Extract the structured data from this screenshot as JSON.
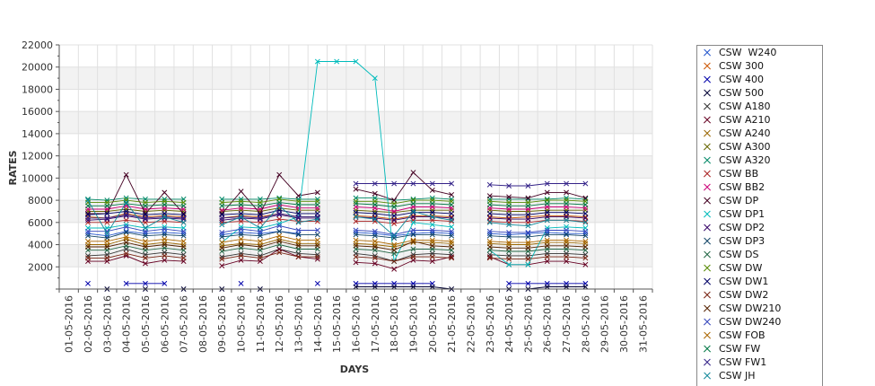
{
  "chart_data": {
    "type": "line",
    "xlabel": "DAYS",
    "ylabel": "RATES",
    "ylim": [
      0,
      22000
    ],
    "yticks": [
      "2000",
      "4000",
      "6000",
      "8000",
      "10000",
      "12000",
      "14000",
      "16000",
      "18000",
      "20000",
      "22000"
    ],
    "x": [
      "01-05-2016",
      "02-05-2016",
      "03-05-2016",
      "04-05-2016",
      "05-05-2016",
      "06-05-2016",
      "07-05-2016",
      "08-05-2016",
      "09-05-2016",
      "10-05-2016",
      "11-05-2016",
      "12-05-2016",
      "13-05-2016",
      "14-05-2016",
      "15-05-2016",
      "16-05-2016",
      "17-05-2016",
      "18-05-2016",
      "19-05-2016",
      "20-05-2016",
      "21-05-2016",
      "22-05-2016",
      "23-05-2016",
      "24-05-2016",
      "25-05-2016",
      "26-05-2016",
      "27-05-2016",
      "28-05-2016",
      "29-05-2016",
      "30-05-2016",
      "31-05-2016"
    ],
    "grid": true,
    "legend_position": "right",
    "series": [
      {
        "name": "CSW  W240",
        "color": "#2255cc",
        "values": [
          null,
          5000,
          4800,
          5200,
          5000,
          5100,
          5000,
          null,
          4900,
          5100,
          5000,
          5200,
          5000,
          null,
          null,
          5100,
          5000,
          4800,
          5000,
          5100,
          5000,
          null,
          5000,
          4900,
          5000,
          5100,
          5000,
          5000,
          null,
          null,
          null
        ]
      },
      {
        "name": "CSW 300",
        "color": "#cc5500",
        "values": [
          null,
          6500,
          6400,
          6800,
          6500,
          6600,
          6500,
          null,
          6400,
          6600,
          6500,
          6800,
          6500,
          6500,
          null,
          6600,
          6500,
          6300,
          6600,
          6600,
          6500,
          null,
          6500,
          6400,
          6500,
          6600,
          6600,
          6500,
          null,
          null,
          null
        ]
      },
      {
        "name": "CSW 400",
        "color": "#0000aa",
        "values": [
          null,
          500,
          null,
          500,
          500,
          500,
          null,
          null,
          null,
          500,
          null,
          null,
          null,
          500,
          null,
          500,
          500,
          500,
          500,
          500,
          null,
          null,
          null,
          500,
          500,
          500,
          500,
          500,
          null,
          null,
          null
        ]
      },
      {
        "name": "CSW 500",
        "color": "#000033",
        "values": [
          null,
          null,
          0,
          null,
          0,
          null,
          0,
          null,
          0,
          null,
          0,
          null,
          null,
          null,
          null,
          200,
          200,
          200,
          200,
          200,
          0,
          null,
          null,
          0,
          0,
          200,
          200,
          200,
          null,
          null,
          null
        ]
      },
      {
        "name": "CSW A180",
        "color": "#333333",
        "values": [
          null,
          3000,
          3100,
          3600,
          3100,
          3300,
          3100,
          null,
          2900,
          3200,
          3000,
          3600,
          3200,
          3100,
          null,
          3200,
          3000,
          2500,
          3100,
          3200,
          3100,
          null,
          3100,
          3000,
          3000,
          3200,
          3200,
          3100,
          null,
          null,
          null
        ]
      },
      {
        "name": "CSW A210",
        "color": "#660022",
        "values": [
          null,
          2500,
          2500,
          3000,
          2300,
          2600,
          2500,
          null,
          2100,
          2600,
          2500,
          3600,
          2900,
          2700,
          null,
          2400,
          2300,
          1800,
          2600,
          2500,
          2900,
          null,
          2900,
          2200,
          2200,
          2500,
          2500,
          2200,
          null,
          null,
          null
        ]
      },
      {
        "name": "CSW A240",
        "color": "#996600",
        "values": [
          null,
          4000,
          4000,
          4500,
          4000,
          4200,
          4000,
          null,
          3900,
          4100,
          4000,
          4500,
          4100,
          4100,
          null,
          4100,
          4000,
          3800,
          4200,
          4200,
          4100,
          null,
          4100,
          4000,
          4000,
          4200,
          4200,
          4100,
          null,
          null,
          null
        ]
      },
      {
        "name": "CSW A300",
        "color": "#666600",
        "values": [
          null,
          7000,
          7000,
          7200,
          7000,
          7100,
          7000,
          null,
          7000,
          7100,
          7000,
          7300,
          7100,
          7100,
          null,
          7100,
          7000,
          6900,
          7100,
          7100,
          7100,
          null,
          7100,
          7000,
          7000,
          7100,
          7100,
          7100,
          null,
          null,
          null
        ]
      },
      {
        "name": "CSW A320",
        "color": "#008866",
        "values": [
          null,
          8100,
          8000,
          8200,
          8100,
          8100,
          8100,
          null,
          8100,
          8100,
          8100,
          8200,
          8100,
          8100,
          null,
          8200,
          8200,
          8000,
          8100,
          8200,
          8100,
          null,
          8100,
          8100,
          8100,
          8100,
          8200,
          8100,
          null,
          null,
          null
        ]
      },
      {
        "name": "CSW BB",
        "color": "#aa2222",
        "values": [
          null,
          6000,
          6000,
          6200,
          6000,
          6100,
          6000,
          null,
          6000,
          6100,
          6000,
          6300,
          6100,
          6100,
          null,
          6100,
          6100,
          5900,
          6200,
          6200,
          6100,
          null,
          6100,
          6000,
          6000,
          6200,
          6200,
          6100,
          null,
          null,
          null
        ]
      },
      {
        "name": "CSW BB2",
        "color": "#cc0077",
        "values": [
          null,
          7200,
          7200,
          7500,
          7200,
          7300,
          7200,
          null,
          7100,
          7300,
          7200,
          7600,
          7300,
          7300,
          null,
          7400,
          7300,
          7000,
          7400,
          7400,
          7300,
          null,
          7300,
          7200,
          7200,
          7400,
          7400,
          7300,
          null,
          null,
          null
        ]
      },
      {
        "name": "CSW DP",
        "color": "#440022",
        "values": [
          null,
          6800,
          6800,
          10300,
          6800,
          8700,
          6800,
          null,
          6800,
          8800,
          6800,
          10300,
          8400,
          8700,
          null,
          9000,
          8600,
          8000,
          10500,
          8900,
          8500,
          null,
          8400,
          8300,
          8200,
          8700,
          8700,
          8200,
          null,
          null,
          null
        ]
      },
      {
        "name": "CSW DP1",
        "color": "#00bbbb",
        "values": [
          null,
          5500,
          5500,
          5800,
          5500,
          5600,
          5500,
          null,
          4200,
          5600,
          5500,
          5900,
          6500,
          20500,
          20500,
          20500,
          19000,
          2500,
          6000,
          5800,
          5600,
          null,
          3500,
          2200,
          2200,
          5500,
          5600,
          5500,
          null,
          null,
          null
        ]
      },
      {
        "name": "CSW DP2",
        "color": "#330066",
        "values": [
          null,
          6200,
          6300,
          6600,
          6300,
          6400,
          6300,
          null,
          6200,
          6400,
          6300,
          6700,
          6400,
          6400,
          null,
          6500,
          6400,
          6200,
          6500,
          6500,
          6400,
          null,
          6400,
          6300,
          6300,
          6500,
          6500,
          6400,
          null,
          null,
          null
        ]
      },
      {
        "name": "CSW DP3",
        "color": "#114466",
        "values": [
          null,
          4800,
          4600,
          5100,
          4800,
          4900,
          4800,
          null,
          4700,
          4900,
          4800,
          5200,
          4900,
          4900,
          null,
          4900,
          4800,
          4600,
          4900,
          4900,
          4800,
          null,
          4800,
          4700,
          4700,
          4900,
          4900,
          4800,
          null,
          null,
          null
        ]
      },
      {
        "name": "CSW DS",
        "color": "#226644",
        "values": [
          null,
          3500,
          3500,
          3900,
          3500,
          3700,
          3500,
          null,
          3400,
          3700,
          3500,
          4000,
          3600,
          3600,
          null,
          3600,
          3500,
          3200,
          3600,
          3600,
          3500,
          null,
          3500,
          3400,
          3400,
          3600,
          3600,
          3500,
          null,
          null,
          null
        ]
      },
      {
        "name": "CSW DW",
        "color": "#558800",
        "values": [
          null,
          7800,
          7800,
          8000,
          7800,
          7900,
          7800,
          null,
          7800,
          7900,
          7800,
          8100,
          7900,
          7900,
          null,
          7900,
          7900,
          7700,
          8000,
          8000,
          7900,
          null,
          7900,
          7800,
          7800,
          8000,
          8000,
          7900,
          null,
          null,
          null
        ]
      },
      {
        "name": "CSW DW1",
        "color": "#000066",
        "values": [
          null,
          6700,
          6800,
          7000,
          6700,
          6800,
          6700,
          null,
          6700,
          6800,
          6700,
          7100,
          6800,
          6800,
          null,
          6900,
          6800,
          6600,
          6900,
          6900,
          6800,
          null,
          6800,
          6700,
          6700,
          6900,
          6900,
          6800,
          null,
          null,
          null
        ]
      },
      {
        "name": "CSW DW2",
        "color": "#772211",
        "values": [
          null,
          2800,
          2800,
          3200,
          2800,
          3000,
          2800,
          null,
          2700,
          3000,
          2800,
          3300,
          2900,
          2900,
          null,
          2900,
          2800,
          2500,
          2900,
          2900,
          2800,
          null,
          2800,
          2700,
          2700,
          2900,
          2900,
          2800,
          null,
          null,
          null
        ]
      },
      {
        "name": "CSW DW210",
        "color": "#552200",
        "values": [
          null,
          3800,
          3800,
          4200,
          3800,
          4000,
          3800,
          null,
          3700,
          4000,
          3800,
          4300,
          3900,
          3900,
          null,
          3900,
          3800,
          3500,
          4300,
          3900,
          3800,
          null,
          3800,
          3700,
          3700,
          3900,
          3900,
          3800,
          null,
          null,
          null
        ]
      },
      {
        "name": "CSW DW240",
        "color": "#3344bb",
        "values": [
          null,
          5200,
          5200,
          5600,
          5200,
          5400,
          5200,
          null,
          5100,
          5400,
          5200,
          5700,
          5300,
          5300,
          null,
          5300,
          5200,
          4900,
          5300,
          5300,
          5200,
          null,
          5200,
          5100,
          5100,
          5300,
          5300,
          5200,
          null,
          null,
          null
        ]
      },
      {
        "name": "CSW FOB",
        "color": "#aa6600",
        "values": [
          null,
          4300,
          4300,
          4700,
          4300,
          4500,
          4300,
          null,
          4200,
          4500,
          4300,
          4800,
          4400,
          4400,
          null,
          4400,
          4300,
          4000,
          4400,
          4400,
          4300,
          null,
          4300,
          4200,
          4200,
          4400,
          4400,
          4300,
          null,
          null,
          null
        ]
      },
      {
        "name": "CSW FW",
        "color": "#007744",
        "values": [
          null,
          7500,
          7500,
          7700,
          7500,
          7600,
          7500,
          null,
          7500,
          7600,
          7500,
          7800,
          7600,
          7600,
          null,
          7700,
          7600,
          7400,
          7700,
          7700,
          7600,
          null,
          7600,
          7500,
          7500,
          7700,
          7700,
          7600,
          null,
          null,
          null
        ]
      },
      {
        "name": "CSW FW1",
        "color": "#332288",
        "values": [
          null,
          6400,
          6400,
          6700,
          6400,
          6500,
          6400,
          null,
          6400,
          6500,
          6400,
          6800,
          6500,
          6500,
          null,
          9500,
          9500,
          9500,
          9500,
          9500,
          9500,
          null,
          9400,
          9300,
          9300,
          9500,
          9500,
          9500,
          null,
          null,
          null
        ]
      },
      {
        "name": "CSW JH",
        "color": "#118899",
        "values": [
          null,
          8000,
          5000,
          7800,
          5500,
          6500,
          6000,
          null,
          5800,
          6500,
          5500,
          7500,
          6000,
          6300,
          null,
          6500,
          6300,
          4800,
          7000,
          6500,
          6200,
          null,
          6000,
          5800,
          5700,
          6200,
          6200,
          6000,
          null,
          null,
          null
        ]
      }
    ]
  }
}
